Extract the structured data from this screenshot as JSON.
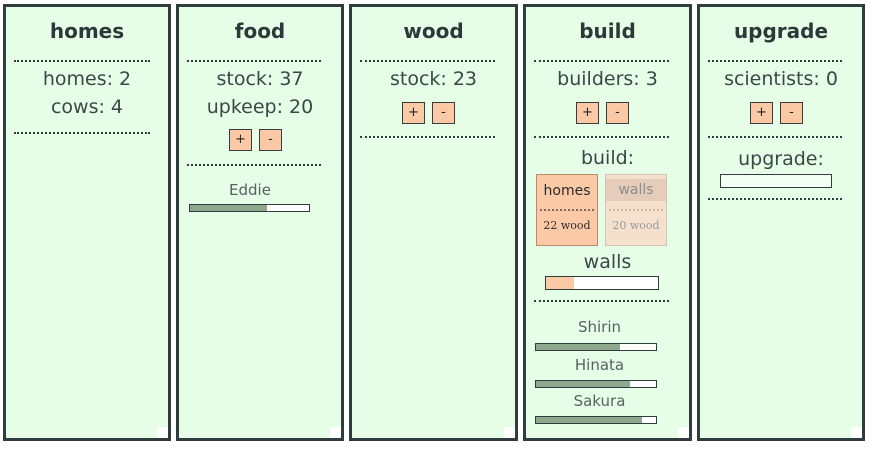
{
  "panels": {
    "homes": {
      "title": "homes",
      "homes_line": "homes: 2",
      "cows_line": "cows: 4"
    },
    "food": {
      "title": "food",
      "stock_line": "stock: 37",
      "upkeep_line": "upkeep: 20",
      "plus": "+",
      "minus": "-",
      "workers": [
        {
          "name": "Eddie",
          "progress": 0.65
        }
      ]
    },
    "wood": {
      "title": "wood",
      "stock_line": "stock: 23",
      "plus": "+",
      "minus": "-"
    },
    "build": {
      "title": "build",
      "builders_line": "builders: 3",
      "plus": "+",
      "minus": "-",
      "build_label": "build:",
      "options": [
        {
          "name": "homes",
          "cost": "22 wood",
          "enabled": true
        },
        {
          "name": "walls",
          "cost": "20 wood",
          "enabled": false
        }
      ],
      "current_project": "walls",
      "current_progress": 0.25,
      "workers": [
        {
          "name": "Shirin",
          "progress": 0.7
        },
        {
          "name": "Hinata",
          "progress": 0.78
        },
        {
          "name": "Sakura",
          "progress": 0.88
        }
      ]
    },
    "upgrade": {
      "title": "upgrade",
      "scientists_line": "scientists: 0",
      "plus": "+",
      "minus": "-",
      "upgrade_label": "upgrade:"
    }
  },
  "colors": {
    "panel_bg": "#e6fde8",
    "border": "#2f3d3f",
    "button": "#fcc9a7",
    "progress": "#8fa98f"
  }
}
